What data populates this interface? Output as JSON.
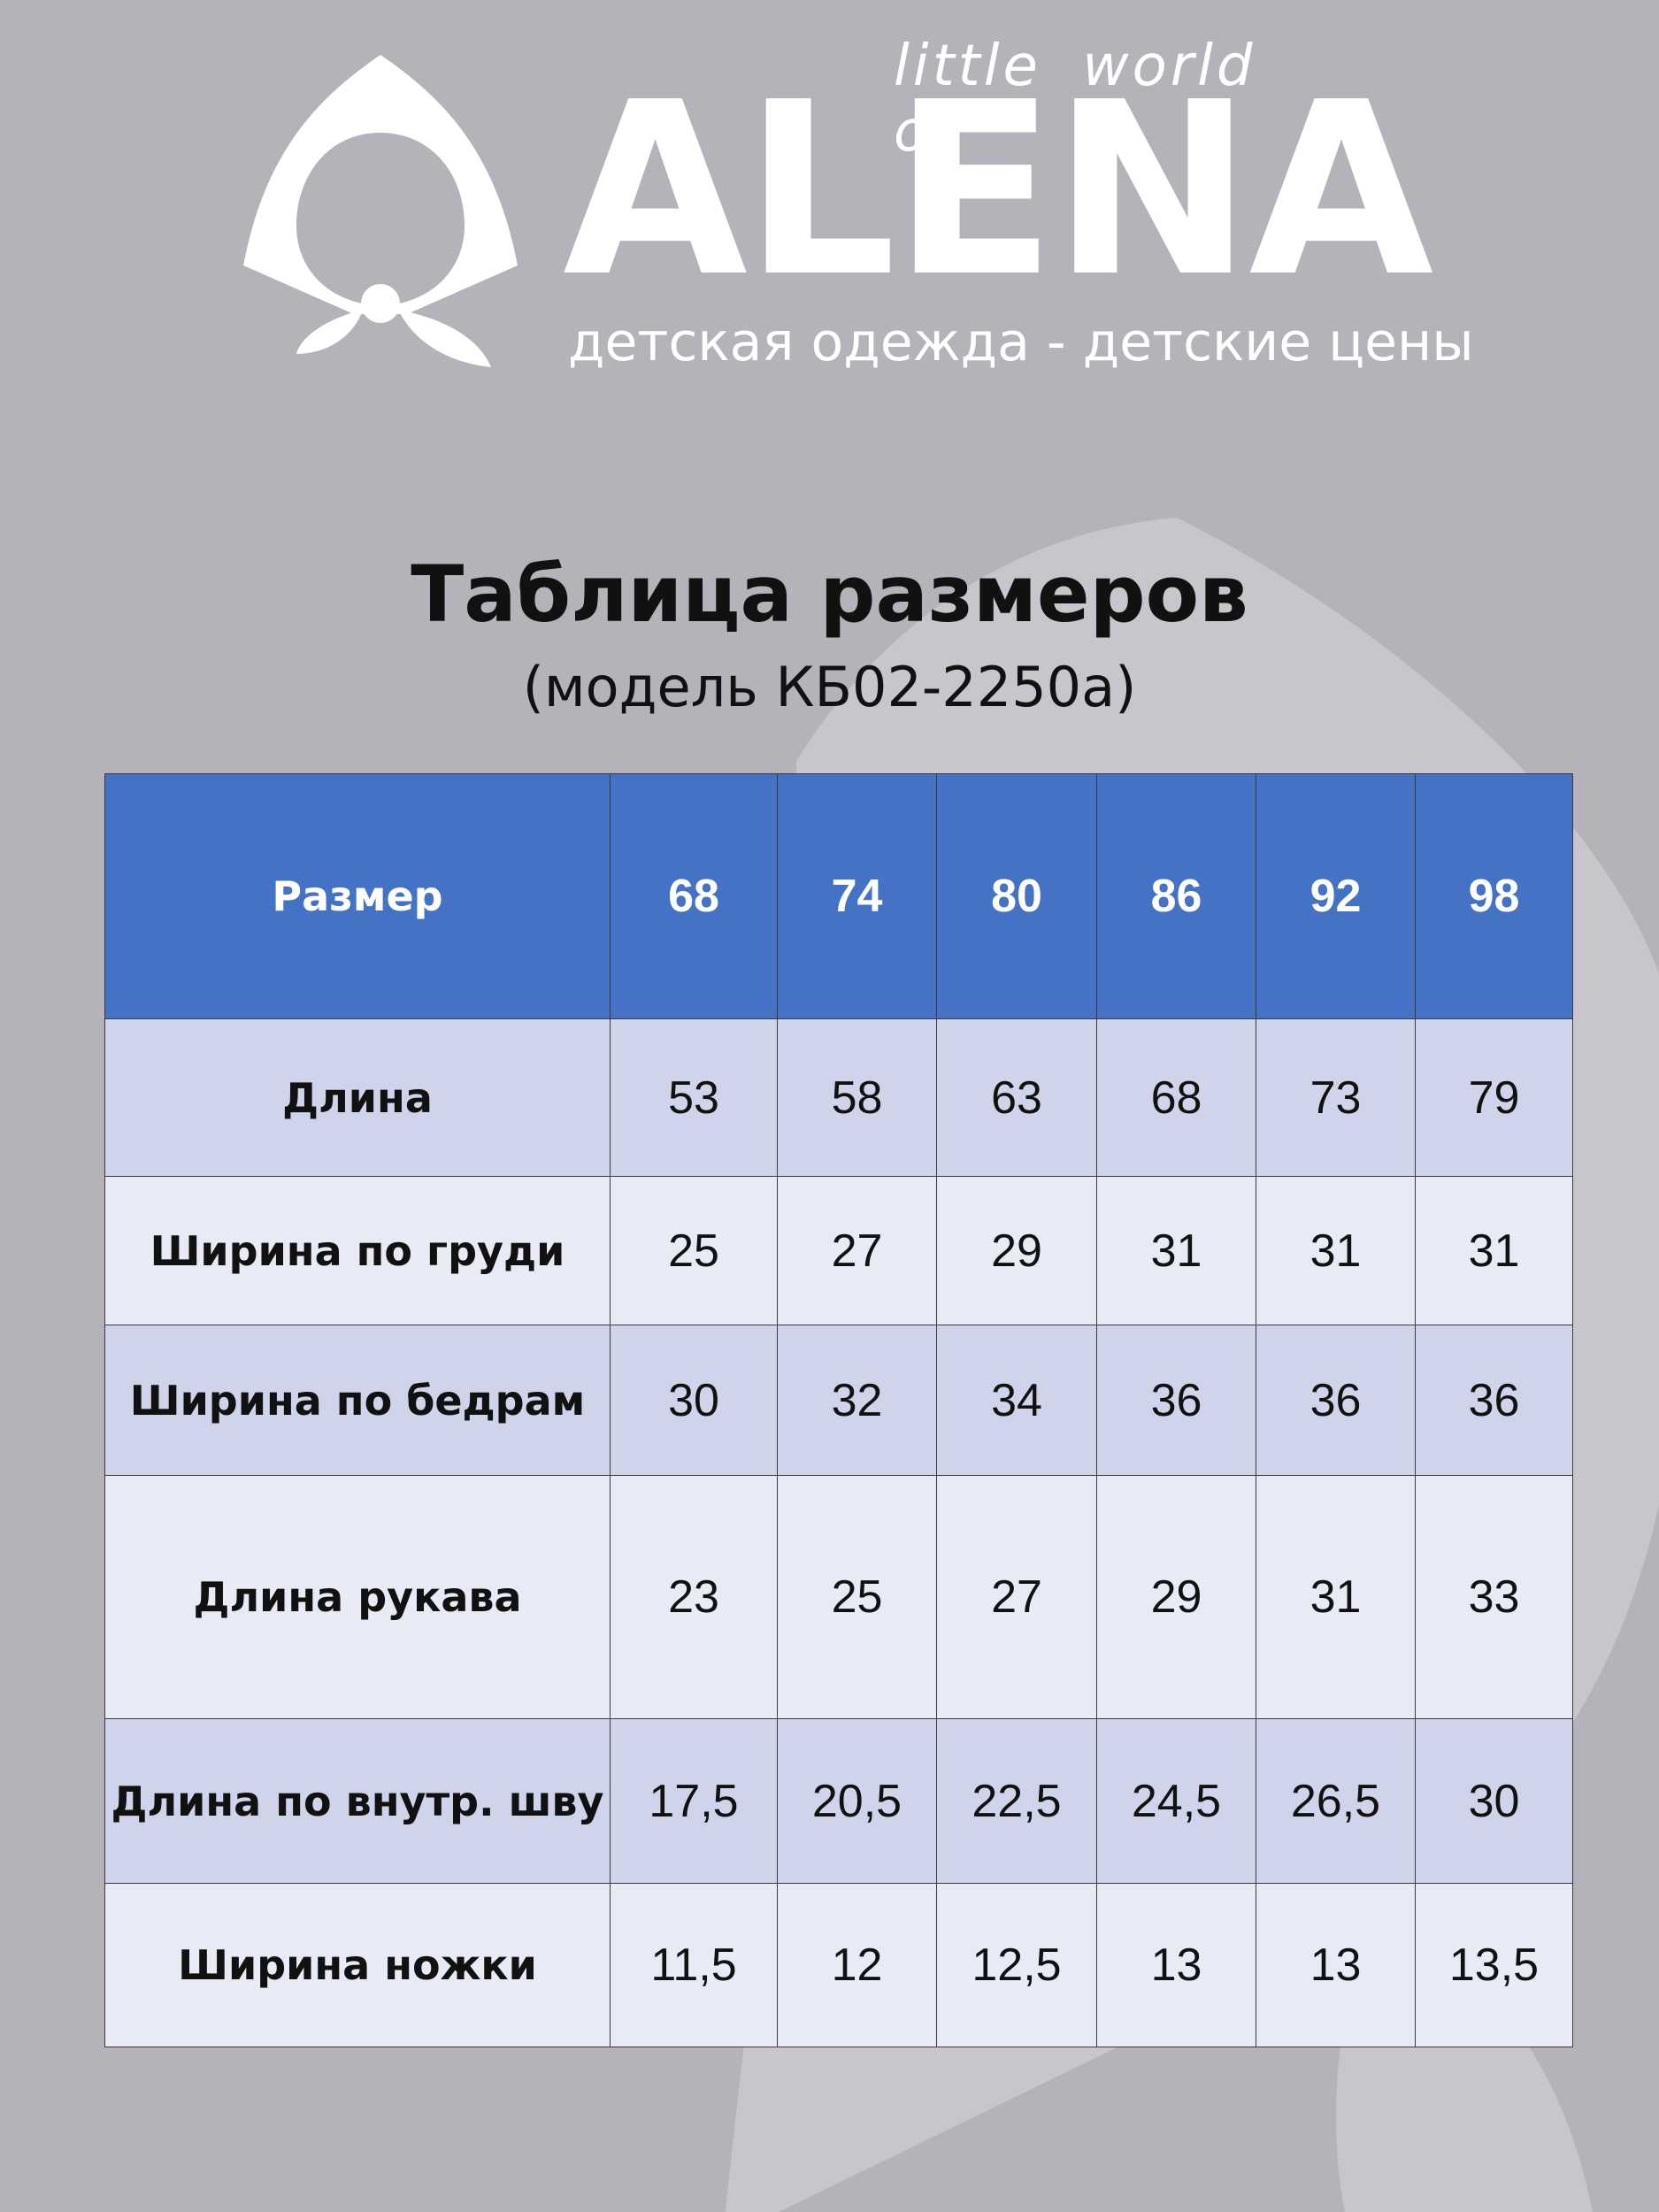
{
  "header": {
    "tagline": "little world of",
    "brand": "ALENA",
    "slogan": "детская одежда - детские цены"
  },
  "title": "Таблица размеров",
  "subtitle": "(модель КБ02-2250а)",
  "table": {
    "header": [
      "Размер",
      "68",
      "74",
      "80",
      "86",
      "92",
      "98"
    ],
    "rows": [
      [
        "Длина",
        "53",
        "58",
        "63",
        "68",
        "73",
        "79"
      ],
      [
        "Ширина по груди",
        "25",
        "27",
        "29",
        "31",
        "31",
        "31"
      ],
      [
        "Ширина по бедрам",
        "30",
        "32",
        "34",
        "36",
        "36",
        "36"
      ],
      [
        "Длина рукава",
        "23",
        "25",
        "27",
        "29",
        "31",
        "33"
      ],
      [
        "Длина по внутр. шву",
        "17,5",
        "20,5",
        "22,5",
        "24,5",
        "26,5",
        "30"
      ],
      [
        "Ширина ножки",
        "11,5",
        "12",
        "12,5",
        "13",
        "13",
        "13,5"
      ]
    ]
  }
}
